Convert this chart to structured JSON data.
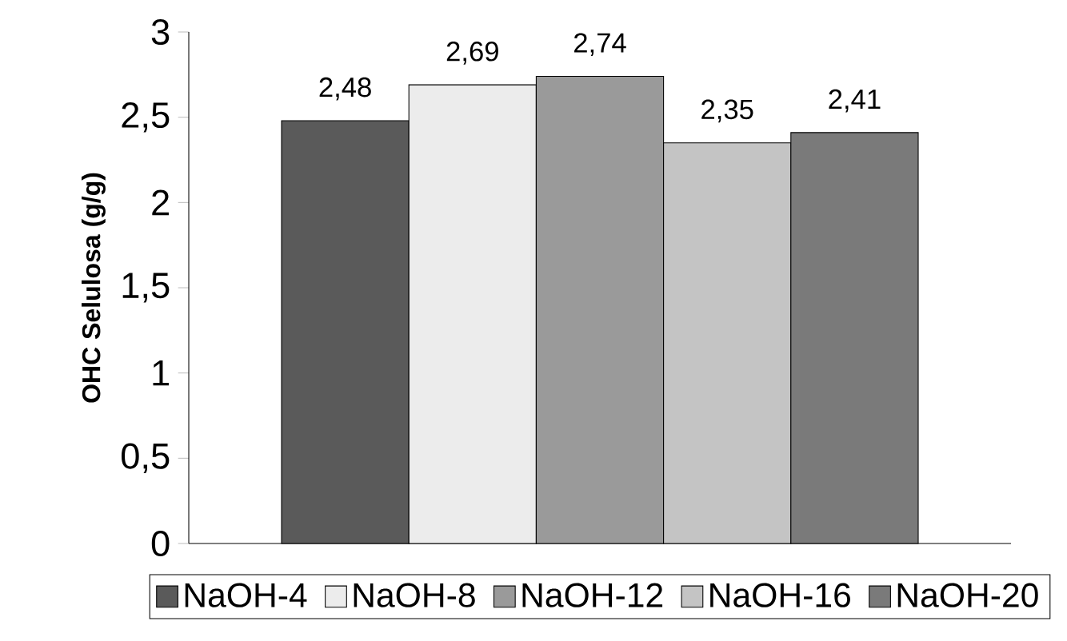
{
  "chart_data": {
    "type": "bar",
    "ylabel": "OHC Selulosa (g/g)",
    "categories": [
      null
    ],
    "series": [
      {
        "name": "NaOH-4",
        "color": "#5a5a5a",
        "values": [
          2.48
        ],
        "value_labels": [
          "2,48"
        ]
      },
      {
        "name": "NaOH-8",
        "color": "#ececec",
        "values": [
          2.69
        ],
        "value_labels": [
          "2,69"
        ]
      },
      {
        "name": "NaOH-12",
        "color": "#9a9a9a",
        "values": [
          2.74
        ],
        "value_labels": [
          "2,74"
        ]
      },
      {
        "name": "NaOH-16",
        "color": "#c4c4c4",
        "values": [
          2.35
        ],
        "value_labels": [
          "2,35"
        ]
      },
      {
        "name": "NaOH-20",
        "color": "#7a7a7a",
        "values": [
          2.41
        ],
        "value_labels": [
          "2,41"
        ]
      }
    ],
    "ylim": [
      0,
      3
    ],
    "yticks": [
      0,
      {
        "value": 0.5,
        "label": "0,5"
      },
      1,
      {
        "value": 1.5,
        "label": "1,5"
      },
      2,
      {
        "value": 2.5,
        "label": "2,5"
      },
      3
    ],
    "grid": false,
    "legend": "bottom"
  }
}
